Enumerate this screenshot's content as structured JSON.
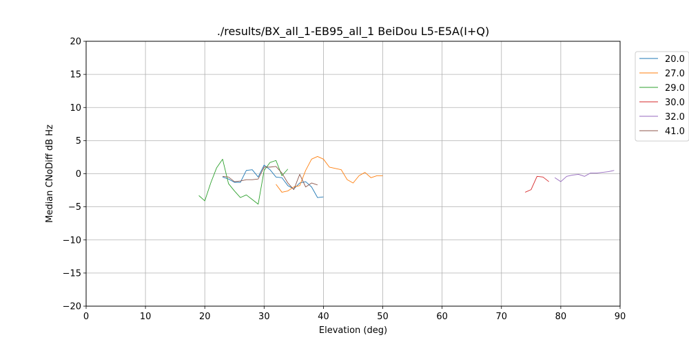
{
  "chart_data": {
    "type": "line",
    "title": "./results/BX_all_1-EB95_all_1 BeiDou L5-E5A(I+Q)",
    "xlabel": "Elevation (deg)",
    "ylabel": "Median CNoDiff dB Hz",
    "xlim": [
      0,
      90
    ],
    "ylim": [
      -20,
      20
    ],
    "xticks": [
      0,
      10,
      20,
      30,
      40,
      50,
      60,
      70,
      80,
      90
    ],
    "yticks": [
      -20,
      -15,
      -10,
      -5,
      0,
      5,
      10,
      15,
      20
    ],
    "grid": true,
    "legend_position": "outside-right-top",
    "series": [
      {
        "name": "20.0",
        "color": "#1f77b4",
        "points": [
          [
            23,
            -0.5
          ],
          [
            24,
            -0.8
          ],
          [
            25,
            -1.3
          ],
          [
            26,
            -1.3
          ],
          [
            27,
            0.5
          ],
          [
            28,
            0.6
          ],
          [
            29,
            -0.5
          ],
          [
            30,
            1.3
          ],
          [
            31,
            0.6
          ],
          [
            32,
            -0.5
          ],
          [
            33,
            -0.6
          ],
          [
            34,
            -1.8
          ],
          [
            35,
            -2.3
          ],
          [
            36,
            -1.4
          ],
          [
            37,
            -1.2
          ],
          [
            38,
            -2.0
          ],
          [
            39,
            -3.6
          ],
          [
            40,
            -3.5
          ]
        ]
      },
      {
        "name": "27.0",
        "color": "#ff7f0e",
        "points": [
          [
            32,
            -1.6
          ],
          [
            33,
            -2.8
          ],
          [
            34,
            -2.6
          ],
          [
            35,
            -2.0
          ],
          [
            36,
            -1.8
          ],
          [
            37,
            0.5
          ],
          [
            38,
            2.2
          ],
          [
            39,
            2.6
          ],
          [
            40,
            2.2
          ],
          [
            41,
            1.0
          ],
          [
            42,
            0.8
          ],
          [
            43,
            0.6
          ],
          [
            44,
            -0.9
          ],
          [
            45,
            -1.4
          ],
          [
            46,
            -0.3
          ],
          [
            47,
            0.2
          ],
          [
            48,
            -0.6
          ],
          [
            49,
            -0.3
          ],
          [
            50,
            -0.3
          ]
        ]
      },
      {
        "name": "29.0",
        "color": "#2ca02c",
        "points": [
          [
            19,
            -3.3
          ],
          [
            20,
            -4.1
          ],
          [
            21,
            -1.4
          ],
          [
            22,
            0.9
          ],
          [
            23,
            2.2
          ],
          [
            24,
            -1.5
          ],
          [
            25,
            -2.6
          ],
          [
            26,
            -3.6
          ],
          [
            27,
            -3.2
          ],
          [
            28,
            -3.9
          ],
          [
            29,
            -4.6
          ],
          [
            30,
            0.5
          ],
          [
            31,
            1.7
          ],
          [
            32,
            2.0
          ],
          [
            33,
            -0.3
          ],
          [
            34,
            0.7
          ]
        ]
      },
      {
        "name": "30.0",
        "color": "#d62728",
        "points": [
          [
            74,
            -2.8
          ],
          [
            75,
            -2.4
          ],
          [
            76,
            -0.4
          ],
          [
            77,
            -0.5
          ],
          [
            78,
            -1.2
          ]
        ]
      },
      {
        "name": "32.0",
        "color": "#9467bd",
        "points": [
          [
            79,
            -0.6
          ],
          [
            80,
            -1.2
          ],
          [
            81,
            -0.4
          ],
          [
            82,
            -0.2
          ],
          [
            83,
            -0.1
          ],
          [
            84,
            -0.4
          ],
          [
            85,
            0.1
          ],
          [
            86,
            0.1
          ],
          [
            87,
            0.2
          ],
          [
            88,
            0.3
          ],
          [
            89,
            0.5
          ]
        ]
      },
      {
        "name": "41.0",
        "color": "#8c564b",
        "points": [
          [
            23,
            -0.4
          ],
          [
            24,
            -0.5
          ],
          [
            25,
            -1.2
          ],
          [
            26,
            -1.1
          ],
          [
            27,
            -0.9
          ],
          [
            28,
            -0.9
          ],
          [
            29,
            -0.8
          ],
          [
            30,
            1.0
          ],
          [
            31,
            1.0
          ],
          [
            32,
            1.1
          ],
          [
            33,
            0.1
          ],
          [
            34,
            -1.4
          ],
          [
            35,
            -2.4
          ],
          [
            36,
            -0.1
          ],
          [
            37,
            -2.0
          ],
          [
            38,
            -1.4
          ],
          [
            39,
            -1.7
          ]
        ]
      }
    ]
  }
}
